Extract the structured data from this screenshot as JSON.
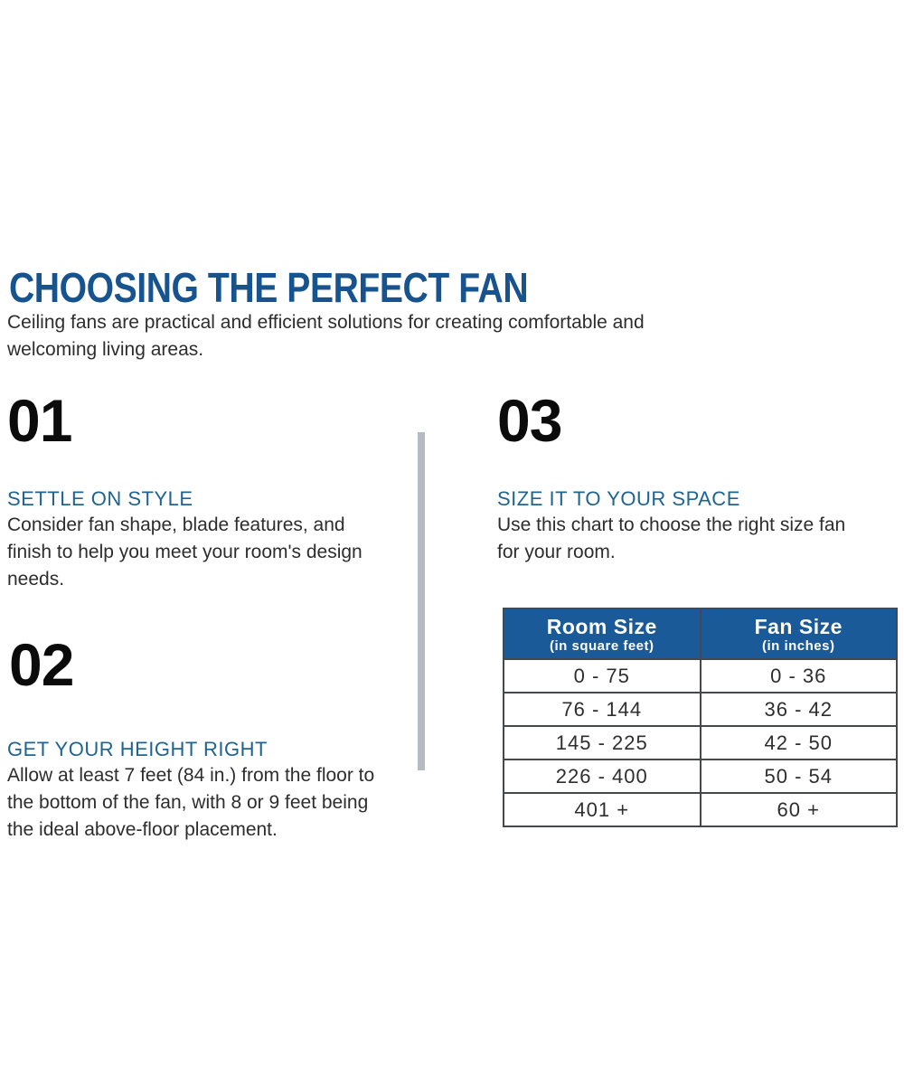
{
  "page": {
    "title": "CHOOSING THE PERFECT FAN",
    "subtitle": "Ceiling fans are practical and efficient solutions for creating comfortable and welcoming living areas."
  },
  "steps": [
    {
      "number": "01",
      "heading": "SETTLE ON STYLE",
      "body": "Consider fan shape, blade features, and finish to help you meet your room's design needs."
    },
    {
      "number": "02",
      "heading": "GET YOUR HEIGHT RIGHT",
      "body": "Allow at least 7 feet (84 in.) from the floor to the bottom of the fan, with 8 or 9 feet being the ideal above-floor placement."
    },
    {
      "number": "03",
      "heading": "SIZE IT TO YOUR SPACE",
      "body": "Use this chart to choose the right size fan for your room."
    }
  ],
  "table": {
    "columns": [
      {
        "title": "Room Size",
        "subtitle": "(in square feet)"
      },
      {
        "title": "Fan Size",
        "subtitle": "(in inches)"
      }
    ],
    "rows": [
      [
        "0 - 75",
        "0 - 36"
      ],
      [
        "76 - 144",
        "36 - 42"
      ],
      [
        "145 - 225",
        "42 - 50"
      ],
      [
        "226 - 400",
        "50 - 54"
      ],
      [
        "401 +",
        "60 +"
      ]
    ]
  },
  "chart_data": {
    "type": "table",
    "title": "Fan sizing chart",
    "columns": [
      "Room Size (in square feet)",
      "Fan Size (in inches)"
    ],
    "rows": [
      [
        "0 - 75",
        "0 - 36"
      ],
      [
        "76 - 144",
        "36 - 42"
      ],
      [
        "145 - 225",
        "42 - 50"
      ],
      [
        "226 - 400",
        "50 - 54"
      ],
      [
        "401 +",
        "60 +"
      ]
    ]
  },
  "colors": {
    "title_blue": "#17538f",
    "heading_blue": "#1e6493",
    "table_header_blue": "#1a5a99",
    "divider_gray": "#b5bcc1",
    "body_text": "#2d2d2d",
    "number_black": "#0b0b0b"
  }
}
